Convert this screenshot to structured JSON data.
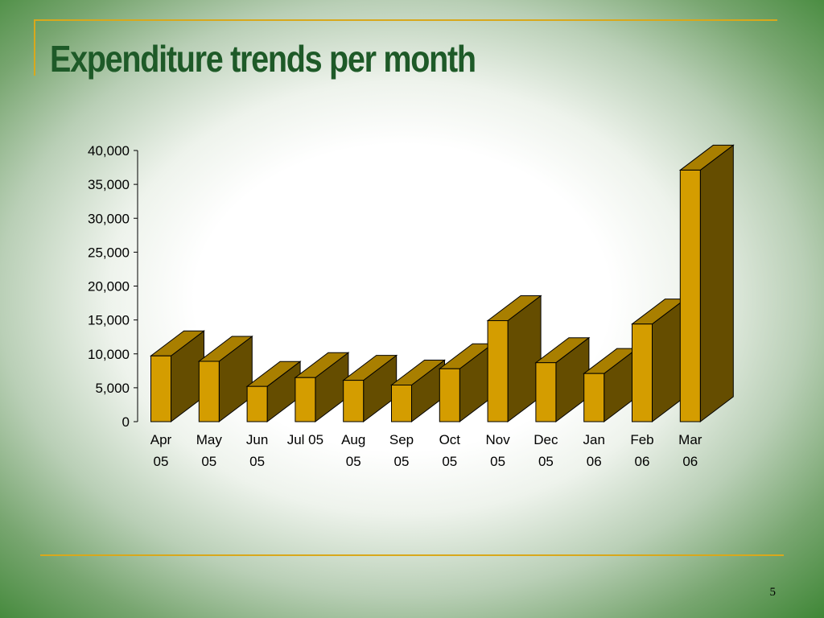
{
  "slide": {
    "title": "Expenditure trends per month",
    "page_number": "5"
  },
  "colors": {
    "title": "#1e5a28",
    "rule": "#d8a81c",
    "bar_front": "#d49d00",
    "bar_top": "#a97f00",
    "bar_side": "#654d00",
    "bar_edge": "#000000"
  },
  "chart_data": {
    "type": "bar",
    "style": "3d-column",
    "title": "",
    "xlabel": "",
    "ylabel": "",
    "categories": [
      [
        "Apr",
        "05"
      ],
      [
        "May",
        "05"
      ],
      [
        "Jun",
        "05"
      ],
      [
        "Jul 05"
      ],
      [
        "Aug",
        "05"
      ],
      [
        "Sep",
        "05"
      ],
      [
        "Oct",
        "05"
      ],
      [
        "Nov",
        "05"
      ],
      [
        "Dec",
        "05"
      ],
      [
        "Jan",
        "06"
      ],
      [
        "Feb",
        "06"
      ],
      [
        "Mar",
        "06"
      ]
    ],
    "values": [
      9700,
      8900,
      5200,
      6500,
      6100,
      5400,
      7800,
      14900,
      8700,
      7100,
      14400,
      37100
    ],
    "ylim": [
      0,
      40000
    ],
    "yticks": [
      {
        "value": 0,
        "label": "0"
      },
      {
        "value": 5000,
        "label": "5,000"
      },
      {
        "value": 10000,
        "label": "10,000"
      },
      {
        "value": 15000,
        "label": "15,000"
      },
      {
        "value": 20000,
        "label": "20,000"
      },
      {
        "value": 25000,
        "label": "25,000"
      },
      {
        "value": 30000,
        "label": "30,000"
      },
      {
        "value": 35000,
        "label": "35,000"
      },
      {
        "value": 40000,
        "label": "40,000"
      }
    ],
    "grid": false,
    "legend": "none"
  }
}
